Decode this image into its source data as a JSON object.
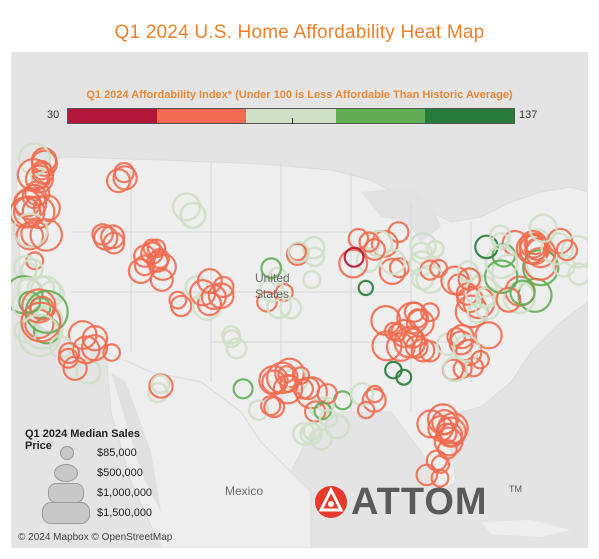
{
  "title": "Q1 2024 U.S. Home Affordability Heat Map",
  "color_legend": {
    "title": "Q1 2024 Affordability Index* (Under 100 is Less Affordable Than Historic Average)",
    "min_label": "30",
    "max_label": "137",
    "bands": [
      "#b2163a",
      "#f26a4f",
      "#cfdfc8",
      "#63ad55",
      "#267a3b"
    ]
  },
  "size_legend": {
    "title": "Q1 2024 Median Sales Price",
    "items": [
      {
        "label": "$85,000"
      },
      {
        "label": "$500,000"
      },
      {
        "label": "$1,000,000"
      },
      {
        "label": "$1,500,000"
      }
    ]
  },
  "places": {
    "us": [
      "United",
      "States"
    ],
    "mexico": "Mexico"
  },
  "brand": {
    "name": "ATTOM",
    "tm": "TM"
  },
  "attribution": "© 2024 Mapbox © OpenStreetMap",
  "colors": {
    "least_affordable": "#b2163a",
    "less_affordable": "#f26a4f",
    "near_average": "#cfdfc8",
    "more_affordable": "#63ad55",
    "most_affordable": "#267a3b",
    "title": "#f07f2a",
    "logo_red": "#e53a2a"
  }
}
